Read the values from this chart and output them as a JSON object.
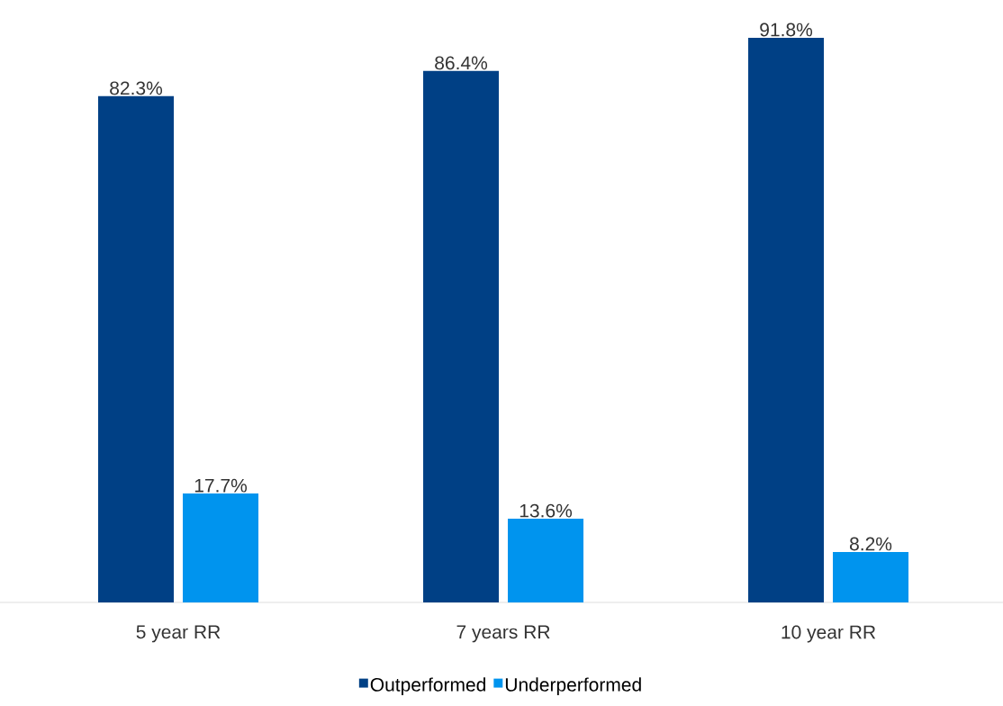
{
  "chart_data": {
    "type": "bar",
    "categories": [
      "5 year RR",
      "7 years RR",
      "10 year RR"
    ],
    "series": [
      {
        "name": "Outperformed",
        "color": "#004085",
        "values": [
          82.3,
          86.4,
          91.8
        ],
        "value_labels": [
          "82.3%",
          "86.4%",
          "91.8%"
        ]
      },
      {
        "name": "Underperformed",
        "color": "#0094ee",
        "values": [
          17.7,
          13.6,
          8.2
        ],
        "value_labels": [
          "17.7%",
          "13.6%",
          "8.2%"
        ]
      }
    ],
    "legend": "bottom"
  }
}
